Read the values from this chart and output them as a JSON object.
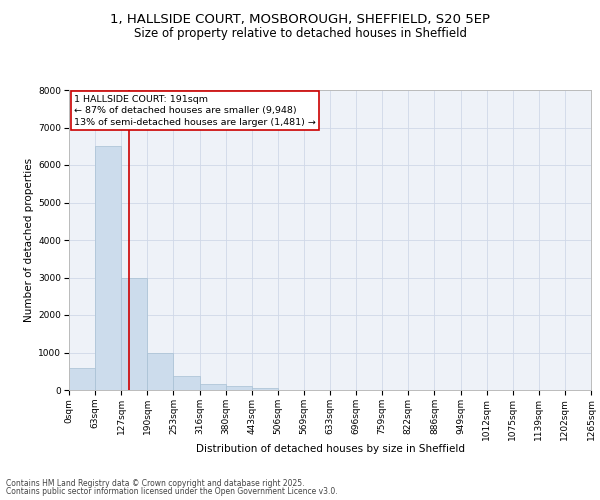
{
  "title_line1": "1, HALLSIDE COURT, MOSBOROUGH, SHEFFIELD, S20 5EP",
  "title_line2": "Size of property relative to detached houses in Sheffield",
  "xlabel": "Distribution of detached houses by size in Sheffield",
  "ylabel": "Number of detached properties",
  "bar_values": [
    580,
    6500,
    3000,
    980,
    370,
    155,
    100,
    65,
    10,
    5,
    3,
    2,
    1,
    1,
    0,
    0,
    0,
    0,
    0,
    0
  ],
  "bin_labels": [
    "0sqm",
    "63sqm",
    "127sqm",
    "190sqm",
    "253sqm",
    "316sqm",
    "380sqm",
    "443sqm",
    "506sqm",
    "569sqm",
    "633sqm",
    "696sqm",
    "759sqm",
    "822sqm",
    "886sqm",
    "949sqm",
    "1012sqm",
    "1075sqm",
    "1139sqm",
    "1202sqm",
    "1265sqm"
  ],
  "bar_color": "#ccdcec",
  "bar_edgecolor": "#a8c0d4",
  "grid_color": "#d0d8e8",
  "background_color": "#eef2f8",
  "property_line_x": 2.28,
  "property_line_color": "#cc0000",
  "annotation_text": "1 HALLSIDE COURT: 191sqm\n← 87% of detached houses are smaller (9,948)\n13% of semi-detached houses are larger (1,481) →",
  "annotation_box_facecolor": "#ffffff",
  "annotation_box_edgecolor": "#cc0000",
  "ylim": [
    0,
    8000
  ],
  "yticks": [
    0,
    1000,
    2000,
    3000,
    4000,
    5000,
    6000,
    7000,
    8000
  ],
  "footnote_line1": "Contains HM Land Registry data © Crown copyright and database right 2025.",
  "footnote_line2": "Contains public sector information licensed under the Open Government Licence v3.0.",
  "title_fontsize": 9.5,
  "subtitle_fontsize": 8.5,
  "label_fontsize": 7.5,
  "tick_fontsize": 6.5,
  "annotation_fontsize": 6.8,
  "footnote_fontsize": 5.5
}
